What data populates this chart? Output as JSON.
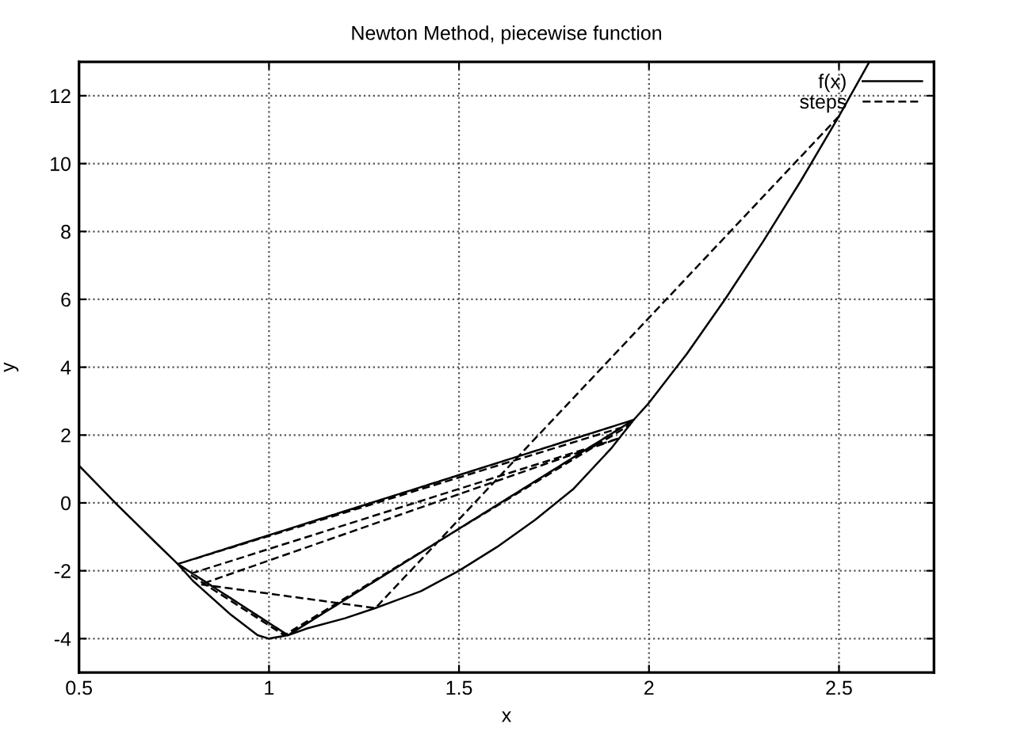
{
  "chart_data": {
    "type": "line",
    "title": "Newton Method, piecewise function",
    "xlabel": "x",
    "ylabel": "y",
    "xlim": [
      0.5,
      2.75
    ],
    "xticks": [
      0.5,
      1,
      1.5,
      2,
      2.5
    ],
    "ylim": [
      -5,
      13
    ],
    "yticks": [
      -4,
      -2,
      0,
      2,
      4,
      6,
      8,
      10,
      12
    ],
    "grid": true,
    "legend": "top right",
    "series": [
      {
        "name": "f(x)",
        "color": "#000000",
        "line_style": "solid",
        "x": [
          0.5,
          0.6,
          0.7,
          0.76,
          0.8,
          0.9,
          0.97,
          1.0,
          1.05,
          1.1,
          1.2,
          1.28,
          1.4,
          1.5,
          1.6,
          1.7,
          1.8,
          1.9,
          1.96,
          2.0,
          2.1,
          2.2,
          2.3,
          2.4,
          2.5,
          2.58
        ],
        "values": [
          1.1,
          -0.05,
          -1.15,
          -1.8,
          -2.3,
          -3.3,
          -3.9,
          -4.0,
          -3.9,
          -3.7,
          -3.4,
          -3.1,
          -2.6,
          -2.0,
          -1.3,
          -0.5,
          0.4,
          1.6,
          2.45,
          2.95,
          4.4,
          6.0,
          7.7,
          9.5,
          11.4,
          13.0
        ]
      },
      {
        "name": "steps",
        "color": "#000000",
        "line_style": "dashed",
        "x": [
          2.5,
          1.28,
          0.82,
          1.92,
          0.79,
          1.04,
          1.95,
          0.76,
          1.05,
          1.96,
          0.76,
          1.05,
          1.96,
          0.76
        ],
        "values": [
          11.4,
          -3.1,
          -2.4,
          1.9,
          -2.1,
          -3.9,
          2.3,
          -1.8,
          -3.9,
          2.45,
          -1.8,
          -3.9,
          2.45,
          -1.8
        ]
      }
    ]
  }
}
